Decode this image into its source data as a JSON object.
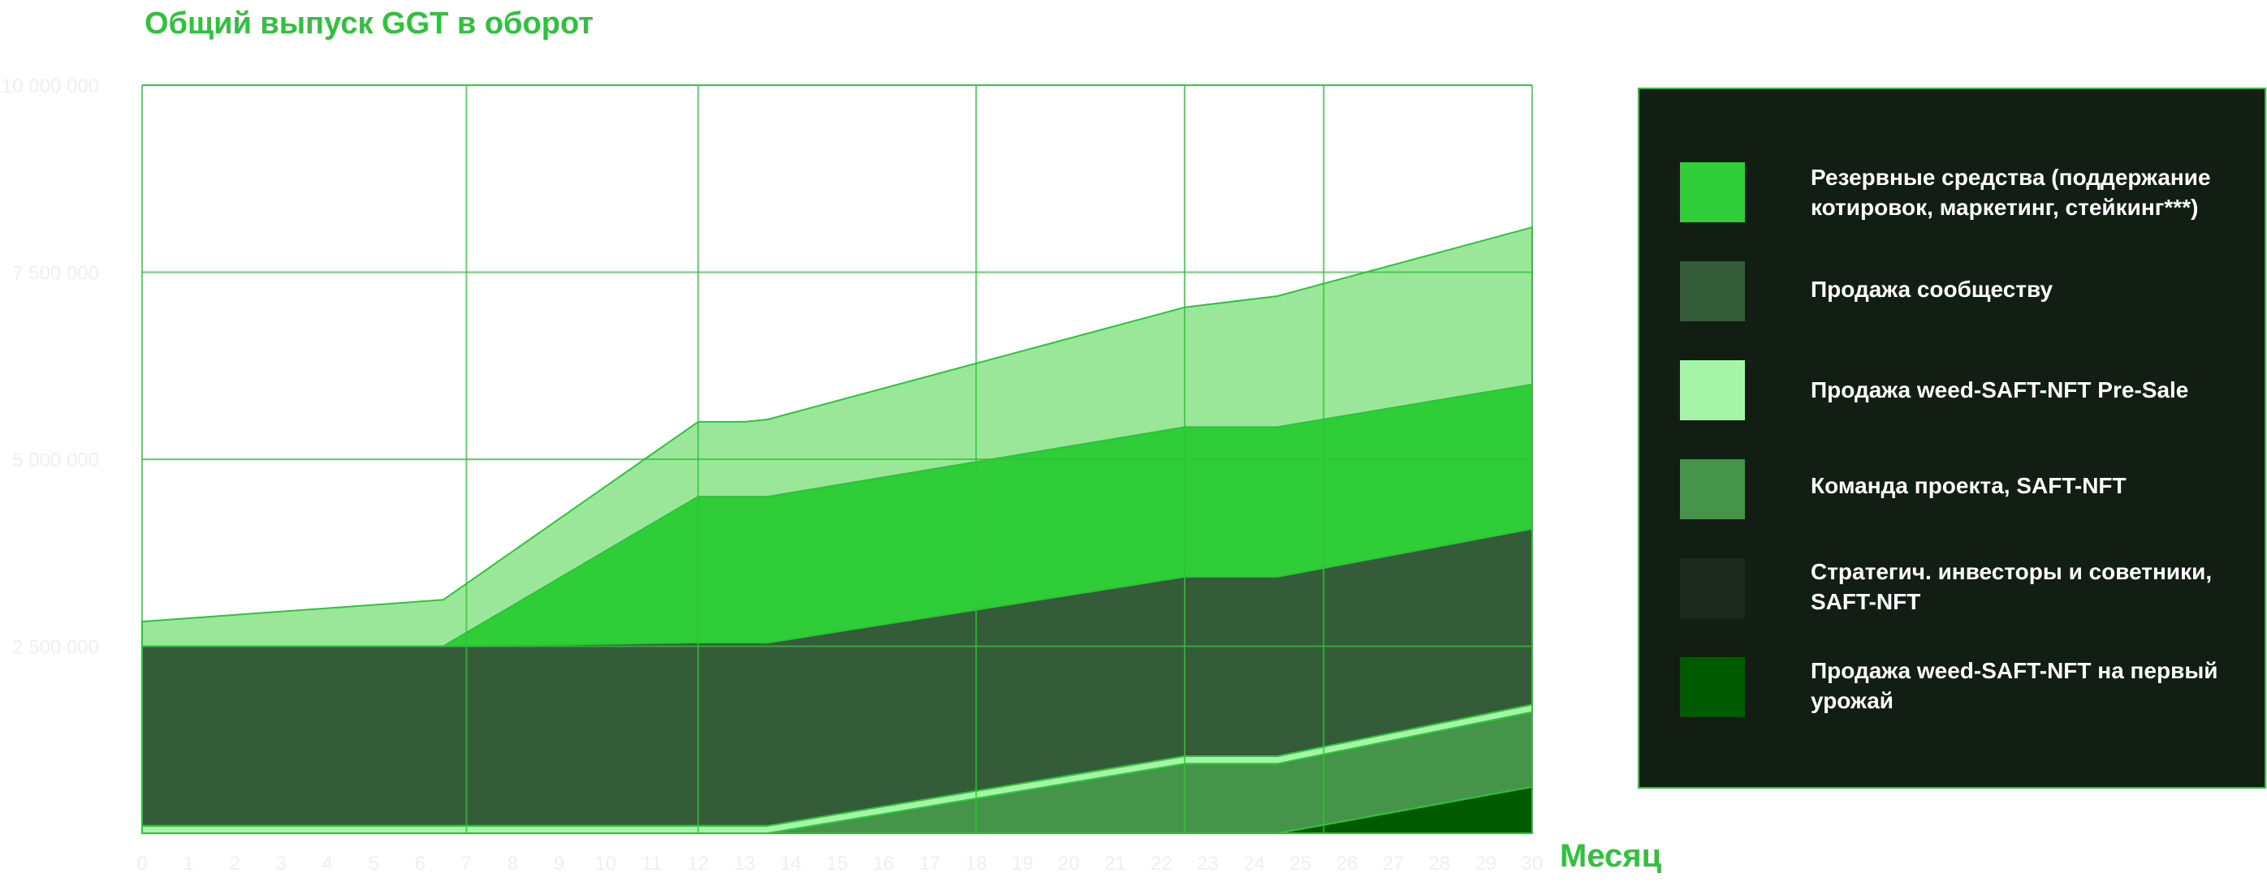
{
  "chart_data": {
    "type": "area",
    "stacked": true,
    "title": "Общий выпуск GGT в оборот",
    "xlabel": "Месяц",
    "ylabel": "",
    "x": [
      0,
      1,
      2,
      3,
      4,
      5,
      6,
      7,
      8,
      9,
      10,
      11,
      12,
      13,
      14,
      15,
      16,
      17,
      18,
      19,
      20,
      21,
      22,
      23,
      24,
      25,
      26,
      27,
      28,
      29,
      30
    ],
    "x_tick_labels": [
      "0",
      "1",
      "2",
      "3",
      "4",
      "5",
      "6",
      "7",
      "8",
      "9",
      "10",
      "11",
      "12",
      "13",
      "14",
      "15",
      "16",
      "17",
      "18",
      "19",
      "20",
      "21",
      "22",
      "23",
      "24",
      "25",
      "26",
      "27",
      "28",
      "29",
      "30"
    ],
    "ylim": [
      0,
      10000000
    ],
    "y_ticks": [
      2500000,
      5000000,
      7500000,
      10000000
    ],
    "y_tick_labels": [
      "2 500 000",
      "5 000 000",
      "7 500 000",
      "10 000 000"
    ],
    "x_gridlines": [
      0,
      7,
      12,
      18,
      22.5,
      25.5,
      30
    ],
    "grid": true,
    "legend_position": "right",
    "series": [
      {
        "name": "Продажа weed-SAFT-NFT на первый урожай",
        "color": "#005a00",
        "points": [
          [
            0,
            0
          ],
          [
            24.5,
            0
          ],
          [
            30,
            620000
          ]
        ]
      },
      {
        "name": "Стратегич. инвесторы и советники, SAFT-NFT",
        "color": "#1b2a1d",
        "points": [
          [
            0,
            0
          ],
          [
            30,
            0
          ]
        ]
      },
      {
        "name": "Команда проекта, SAFT-NFT",
        "color": "#45944a",
        "points": [
          [
            0,
            0
          ],
          [
            13.5,
            0
          ],
          [
            22.5,
            930000
          ],
          [
            24.5,
            930000
          ],
          [
            30,
            1000000
          ]
        ]
      },
      {
        "name": "Продажа weed-SAFT-NFT Pre-Sale",
        "color": "#a5f5a8",
        "points": [
          [
            0,
            100000
          ],
          [
            13.5,
            100000
          ],
          [
            22.5,
            100000
          ],
          [
            24.5,
            100000
          ],
          [
            30,
            100000
          ]
        ]
      },
      {
        "name": "Продажа сообществу",
        "color": "#355c38",
        "points": [
          [
            0,
            2400000
          ],
          [
            6.5,
            2400000
          ],
          [
            12,
            2450000
          ],
          [
            13,
            2450000
          ],
          [
            22.5,
            2400000
          ],
          [
            24.5,
            2400000
          ],
          [
            30,
            2350000
          ]
        ]
      },
      {
        "name": "Резервные средства (поддержание котировок, маркетинг, стейкинг***)",
        "color": "#2fce39",
        "points": [
          [
            0,
            0
          ],
          [
            6.5,
            0
          ],
          [
            12,
            1950000
          ],
          [
            13,
            1950000
          ],
          [
            22.5,
            2000000
          ],
          [
            24.5,
            2000000
          ],
          [
            30,
            1930000
          ]
        ]
      },
      {
        "name": "_top_band",
        "color": "#9be79a",
        "points": [
          [
            0,
            330000
          ],
          [
            6.5,
            620000
          ],
          [
            12,
            1000000
          ],
          [
            13,
            1000000
          ],
          [
            22.5,
            1600000
          ],
          [
            24.5,
            1750000
          ],
          [
            30,
            2100000
          ]
        ]
      }
    ]
  },
  "legend": {
    "items": [
      {
        "label": "Резервные средства (поддержание котировок, маркетинг, стейкинг***)",
        "color": "#2fce39"
      },
      {
        "label": "Продажа сообществу",
        "color": "#355c38"
      },
      {
        "label": "Продажа weed-SAFT-NFT Pre-Sale",
        "color": "#a5f5a8"
      },
      {
        "label": "Команда проекта, SAFT-NFT",
        "color": "#45944a"
      },
      {
        "label": "Стратегич. инвесторы и советники, SAFT-NFT",
        "color": "#1b2a1d"
      },
      {
        "label": "Продажа weed-SAFT-NFT на первый урожай",
        "color": "#005a00"
      }
    ]
  },
  "colors": {
    "accent": "#2fc23c",
    "legend_bg": "#121d14",
    "tick_text": "#eef0ee"
  }
}
